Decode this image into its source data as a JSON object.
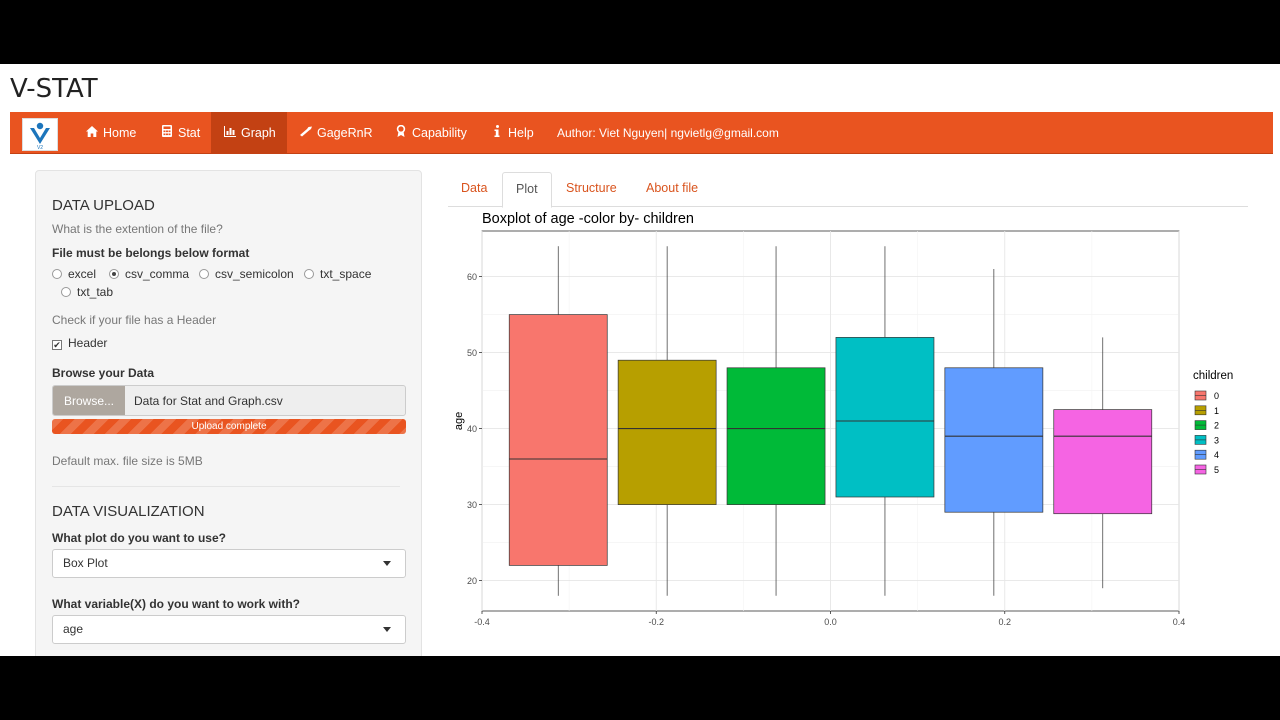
{
  "app": {
    "title": "V-STAT"
  },
  "navbar": {
    "items": [
      {
        "label": "Home",
        "icon": "home-icon"
      },
      {
        "label": "Stat",
        "icon": "calculator-icon"
      },
      {
        "label": "Graph",
        "icon": "bar-chart-icon",
        "active": true
      },
      {
        "label": "GageRnR",
        "icon": "wrench-icon"
      },
      {
        "label": "Capability",
        "icon": "award-icon"
      },
      {
        "label": "Help",
        "icon": "info-icon"
      }
    ],
    "author": "Author: Viet Nguyen| ngvietlg@gmail.com",
    "logo_text": "V2",
    "accent": "#e95420"
  },
  "sidebar": {
    "upload_heading": "DATA UPLOAD",
    "ext_question": "What is the extention of the file?",
    "format_label": "File must be belongs below format",
    "format_options": [
      "excel",
      "csv_comma",
      "csv_semicolon",
      "txt_space",
      "txt_tab"
    ],
    "format_selected": "csv_comma",
    "header_help": "Check if your file has a Header",
    "header_checkbox": "Header",
    "header_checked": true,
    "browse_label": "Browse your Data",
    "browse_button": "Browse...",
    "file_name": "Data for Stat and Graph.csv",
    "upload_status": "Upload complete",
    "upload_progress": 1.0,
    "max_size_note": "Default max. file size is 5MB",
    "viz_heading": "DATA VISUALIZATION",
    "plot_question": "What plot do you want to use?",
    "plot_value": "Box Plot",
    "variable_question": "What variable(X) do you want to work with?",
    "variable_value": "age"
  },
  "tabs": [
    {
      "label": "Data"
    },
    {
      "label": "Plot",
      "active": true
    },
    {
      "label": "Structure"
    },
    {
      "label": "About file"
    }
  ],
  "chart_data": {
    "type": "box",
    "title": "Boxplot of  age  -color by-  children",
    "xlabel": "",
    "ylabel": "age",
    "xlim": [
      -0.4,
      0.4
    ],
    "ylim": [
      16,
      66
    ],
    "x_ticks": [
      -0.4,
      -0.2,
      0.0,
      0.2,
      0.4
    ],
    "x_tick_labels": [
      "-0.4",
      "-0.2",
      "0.0",
      "0.2",
      "0.4"
    ],
    "y_ticks": [
      20,
      30,
      40,
      50,
      60
    ],
    "y_tick_labels": [
      "20",
      "30",
      "40",
      "50",
      "60"
    ],
    "grid": true,
    "legend": {
      "title": "children",
      "placement": "right"
    },
    "series": [
      {
        "name": "0",
        "color": "#f8766d",
        "min": 18,
        "q1": 22,
        "median": 36,
        "q3": 55,
        "max": 64
      },
      {
        "name": "1",
        "color": "#b79f00",
        "min": 18,
        "q1": 30,
        "median": 40,
        "q3": 49,
        "max": 64
      },
      {
        "name": "2",
        "color": "#00ba38",
        "min": 18,
        "q1": 30,
        "median": 40,
        "q3": 48,
        "max": 64
      },
      {
        "name": "3",
        "color": "#00bfc4",
        "min": 18,
        "q1": 31,
        "median": 41,
        "q3": 52,
        "max": 64
      },
      {
        "name": "4",
        "color": "#619cff",
        "min": 18,
        "q1": 29,
        "median": 39,
        "q3": 48,
        "max": 61
      },
      {
        "name": "5",
        "color": "#f564e3",
        "min": 19,
        "q1": 28.8,
        "median": 39,
        "q3": 42.5,
        "max": 52
      }
    ]
  }
}
